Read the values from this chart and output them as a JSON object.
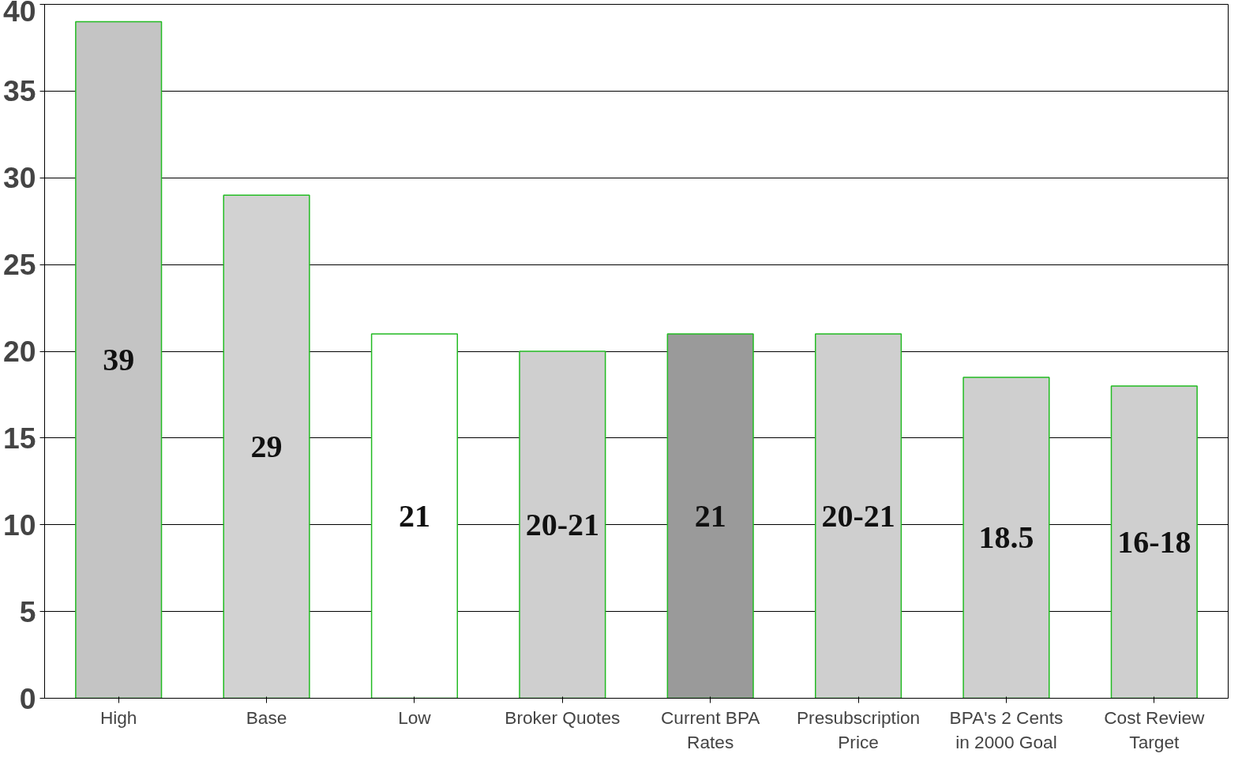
{
  "chart_data": {
    "type": "bar",
    "categories": [
      "High",
      "Base",
      "Low",
      "Broker Quotes",
      "Current BPA\nRates",
      "Presubscription\nPrice",
      "BPA's 2 Cents\nin 2000 Goal",
      "Cost Review\nTarget"
    ],
    "values": [
      39,
      29,
      21,
      20,
      21,
      21,
      18.5,
      18
    ],
    "value_labels": [
      "39",
      "29",
      "21",
      "20-21",
      "21",
      "20-21",
      "18.5",
      "16-18"
    ],
    "colors": [
      "#c4c4c4",
      "#d2d2d2",
      "#ffffff",
      "#cfcfcf",
      "#9a9a9a",
      "#cfcfcf",
      "#cfcfcf",
      "#cfcfcf"
    ],
    "ylim": [
      0,
      40
    ],
    "yticks": [
      0,
      5,
      10,
      15,
      20,
      25,
      30,
      35,
      40
    ],
    "grid": "y"
  }
}
